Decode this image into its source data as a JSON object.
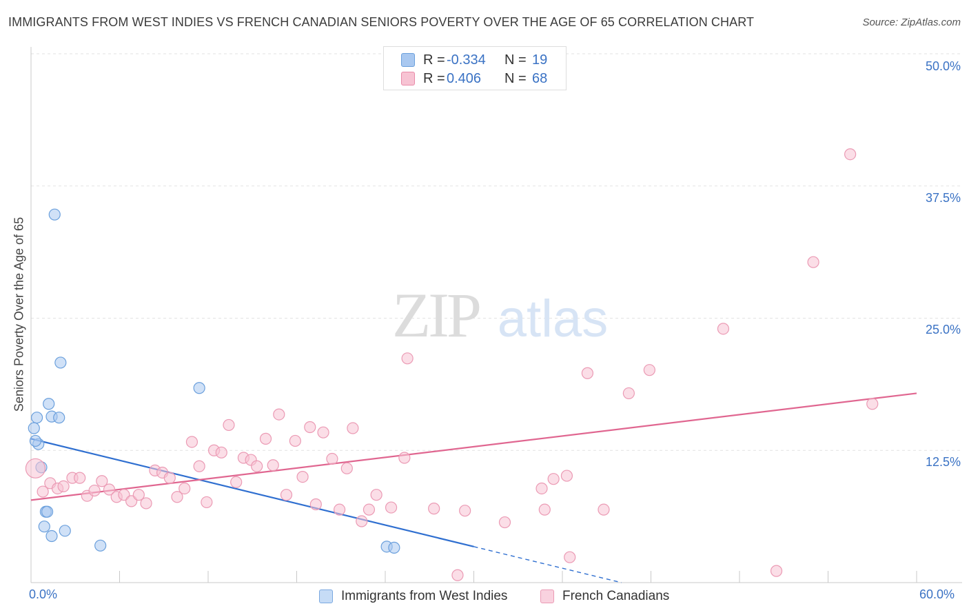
{
  "title": "IMMIGRANTS FROM WEST INDIES VS FRENCH CANADIAN SENIORS POVERTY OVER THE AGE OF 65 CORRELATION CHART",
  "source": "Source: ZipAtlas.com",
  "watermark": {
    "zip": "ZIP",
    "atlas": "atlas"
  },
  "legend": {
    "r_label": "R =",
    "n_label": "N =",
    "rows": [
      {
        "r": "-0.334",
        "n": "19",
        "color": "#a9c8f0",
        "border": "#6a9fdc"
      },
      {
        "r": "0.406",
        "n": "68",
        "color": "#f7c3d3",
        "border": "#e98aa8"
      }
    ]
  },
  "bottom_legend": [
    {
      "label": "Immigrants from West Indies",
      "color": "#c6dcf6",
      "border": "#7aa8e0"
    },
    {
      "label": "French Canadians",
      "color": "#f9d2df",
      "border": "#eb9ab4"
    }
  ],
  "chart_data": {
    "type": "scatter",
    "title": "IMMIGRANTS FROM WEST INDIES VS FRENCH CANADIAN SENIORS POVERTY OVER THE AGE OF 65 CORRELATION CHART",
    "xlabel": "",
    "ylabel": "Seniors Poverty Over the Age of 65",
    "xlim": [
      0,
      60
    ],
    "ylim": [
      0,
      50
    ],
    "x_tick_labels": [
      "0.0%",
      "60.0%"
    ],
    "y_ticks": [
      12.5,
      25.0,
      37.5,
      50.0
    ],
    "y_tick_labels": [
      "12.5%",
      "25.0%",
      "37.5%",
      "50.0%"
    ],
    "grid": true,
    "legend_position": "top-center",
    "series": [
      {
        "name": "Immigrants from West Indies",
        "color": "#6a9fdc",
        "fill": "#a9c8f0",
        "trend": {
          "x0": 0,
          "y0": 13.6,
          "x1": 30,
          "y1": 3.4,
          "dashed_to_x": 40,
          "dashed_to_y": 0.0,
          "color": "#2f6fd0"
        },
        "points": [
          [
            1.6,
            34.8
          ],
          [
            2.0,
            20.8
          ],
          [
            1.2,
            16.9
          ],
          [
            0.4,
            15.6
          ],
          [
            1.4,
            15.7
          ],
          [
            1.9,
            15.6
          ],
          [
            0.2,
            14.6
          ],
          [
            0.5,
            13.1
          ],
          [
            0.7,
            10.9
          ],
          [
            1.0,
            6.7
          ],
          [
            1.1,
            6.7
          ],
          [
            0.9,
            5.3
          ],
          [
            1.4,
            4.4
          ],
          [
            2.3,
            4.9
          ],
          [
            4.7,
            3.5
          ],
          [
            11.4,
            18.4
          ],
          [
            24.1,
            3.4
          ],
          [
            24.6,
            3.3
          ],
          [
            0.3,
            13.4
          ]
        ]
      },
      {
        "name": "French Canadians",
        "color": "#eb9ab4",
        "fill": "#f7c3d3",
        "trend": {
          "x0": 0,
          "y0": 7.8,
          "x1": 60,
          "y1": 17.9,
          "color": "#e06690"
        },
        "points": [
          [
            0.3,
            10.8
          ],
          [
            0.8,
            8.6
          ],
          [
            1.3,
            9.4
          ],
          [
            1.8,
            8.9
          ],
          [
            2.2,
            9.1
          ],
          [
            2.8,
            9.9
          ],
          [
            3.3,
            9.9
          ],
          [
            3.8,
            8.2
          ],
          [
            4.3,
            8.7
          ],
          [
            4.8,
            9.6
          ],
          [
            5.3,
            8.8
          ],
          [
            5.8,
            8.1
          ],
          [
            6.3,
            8.3
          ],
          [
            6.8,
            7.7
          ],
          [
            7.3,
            8.3
          ],
          [
            7.8,
            7.5
          ],
          [
            8.4,
            10.6
          ],
          [
            8.9,
            10.4
          ],
          [
            9.4,
            9.9
          ],
          [
            9.9,
            8.1
          ],
          [
            10.4,
            8.9
          ],
          [
            10.9,
            13.3
          ],
          [
            11.4,
            11.0
          ],
          [
            11.9,
            7.6
          ],
          [
            12.4,
            12.5
          ],
          [
            12.9,
            12.3
          ],
          [
            13.4,
            14.9
          ],
          [
            13.9,
            9.5
          ],
          [
            14.4,
            11.8
          ],
          [
            14.9,
            11.6
          ],
          [
            15.3,
            11.0
          ],
          [
            15.9,
            13.6
          ],
          [
            16.4,
            11.1
          ],
          [
            16.8,
            15.9
          ],
          [
            17.3,
            8.3
          ],
          [
            17.9,
            13.4
          ],
          [
            18.4,
            10.0
          ],
          [
            18.9,
            14.7
          ],
          [
            19.3,
            7.4
          ],
          [
            19.8,
            14.2
          ],
          [
            20.4,
            11.7
          ],
          [
            20.9,
            6.9
          ],
          [
            21.4,
            10.8
          ],
          [
            21.8,
            14.6
          ],
          [
            22.4,
            5.8
          ],
          [
            22.9,
            6.9
          ],
          [
            23.4,
            8.3
          ],
          [
            24.4,
            7.1
          ],
          [
            25.3,
            11.8
          ],
          [
            25.5,
            21.2
          ],
          [
            27.3,
            7.0
          ],
          [
            28.9,
            0.7
          ],
          [
            29.4,
            6.8
          ],
          [
            32.1,
            5.7
          ],
          [
            34.6,
            8.9
          ],
          [
            34.8,
            6.9
          ],
          [
            35.4,
            9.8
          ],
          [
            36.3,
            10.1
          ],
          [
            36.5,
            2.4
          ],
          [
            37.7,
            19.8
          ],
          [
            38.8,
            6.9
          ],
          [
            40.5,
            17.9
          ],
          [
            41.9,
            20.1
          ],
          [
            46.9,
            24.0
          ],
          [
            50.5,
            1.1
          ],
          [
            53.0,
            30.3
          ],
          [
            55.5,
            40.5
          ],
          [
            57.0,
            16.9
          ]
        ]
      }
    ]
  }
}
